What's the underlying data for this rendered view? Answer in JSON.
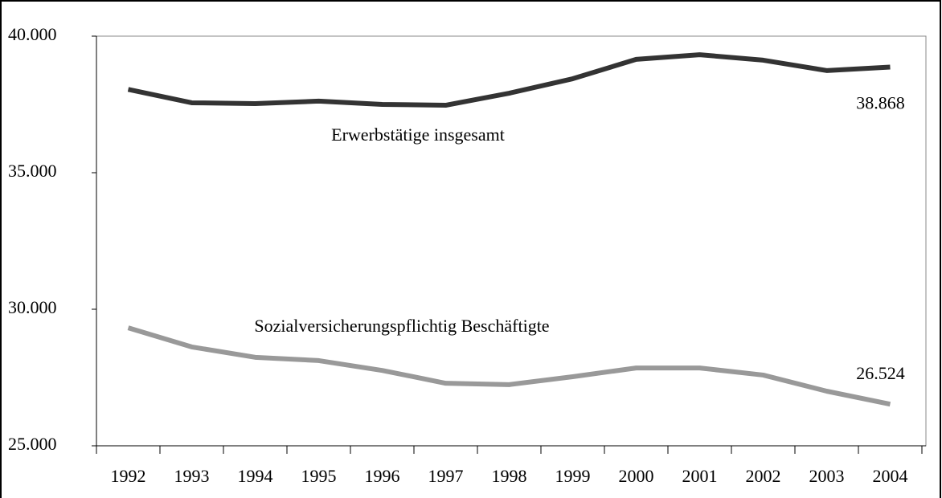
{
  "chart_data": {
    "type": "line",
    "categories": [
      "1992",
      "1993",
      "1994",
      "1995",
      "1996",
      "1997",
      "1998",
      "1999",
      "2000",
      "2001",
      "2002",
      "2003",
      "2004"
    ],
    "series": [
      {
        "name": "Erwerbstätige insgesamt",
        "color": "#333333",
        "values": [
          38050,
          37560,
          37530,
          37620,
          37500,
          37470,
          37910,
          38440,
          39150,
          39320,
          39120,
          38740,
          38868
        ],
        "value_labels": [
          null,
          null,
          null,
          null,
          null,
          null,
          null,
          null,
          null,
          null,
          null,
          null,
          "38.868"
        ]
      },
      {
        "name": "Sozialversicherungspflichtig Beschäftigte",
        "color": "#999999",
        "values": [
          29320,
          28620,
          28240,
          28120,
          27760,
          27290,
          27240,
          27530,
          27850,
          27850,
          27590,
          27000,
          26524
        ],
        "value_labels": [
          null,
          null,
          null,
          null,
          null,
          null,
          null,
          null,
          null,
          null,
          null,
          null,
          "26.524"
        ]
      }
    ],
    "ylim": [
      25000,
      40000
    ],
    "yticks": [
      {
        "value": 25000,
        "label": "25.000"
      },
      {
        "value": 30000,
        "label": "30.000"
      },
      {
        "value": 35000,
        "label": "35.000"
      },
      {
        "value": 40000,
        "label": "40.000"
      }
    ],
    "grid": false
  }
}
